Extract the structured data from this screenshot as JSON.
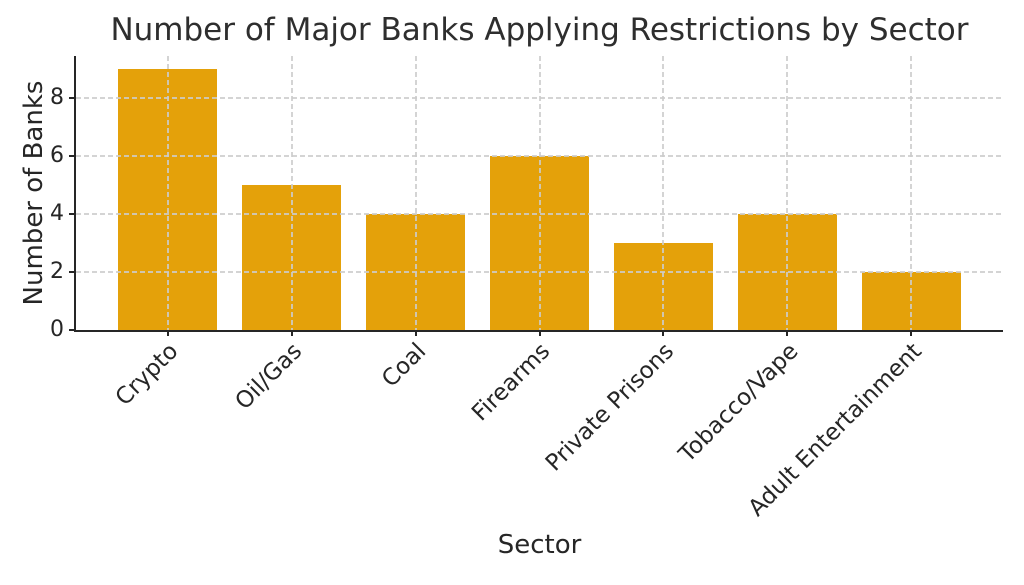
{
  "chart_data": {
    "type": "bar",
    "title": "Number of Major Banks Applying Restrictions by Sector",
    "xlabel": "Sector",
    "ylabel": "Number of Banks",
    "categories": [
      "Crypto",
      "Oil/Gas",
      "Coal",
      "Firearms",
      "Private Prisons",
      "Tobacco/Vape",
      "Adult Entertainment"
    ],
    "values": [
      9,
      5,
      4,
      6,
      3,
      4,
      2
    ],
    "yticks": [
      0,
      2,
      4,
      6,
      8
    ],
    "ylim": [
      0,
      9.45
    ],
    "legend": "none",
    "grid": "dashed horizontal and vertical gridlines drawn over bars",
    "colors": {
      "bar": "#E4A10A",
      "gridline": "#cccccc",
      "spine": "#262626",
      "text": "#2e2e2e",
      "background": "#ffffff"
    }
  }
}
